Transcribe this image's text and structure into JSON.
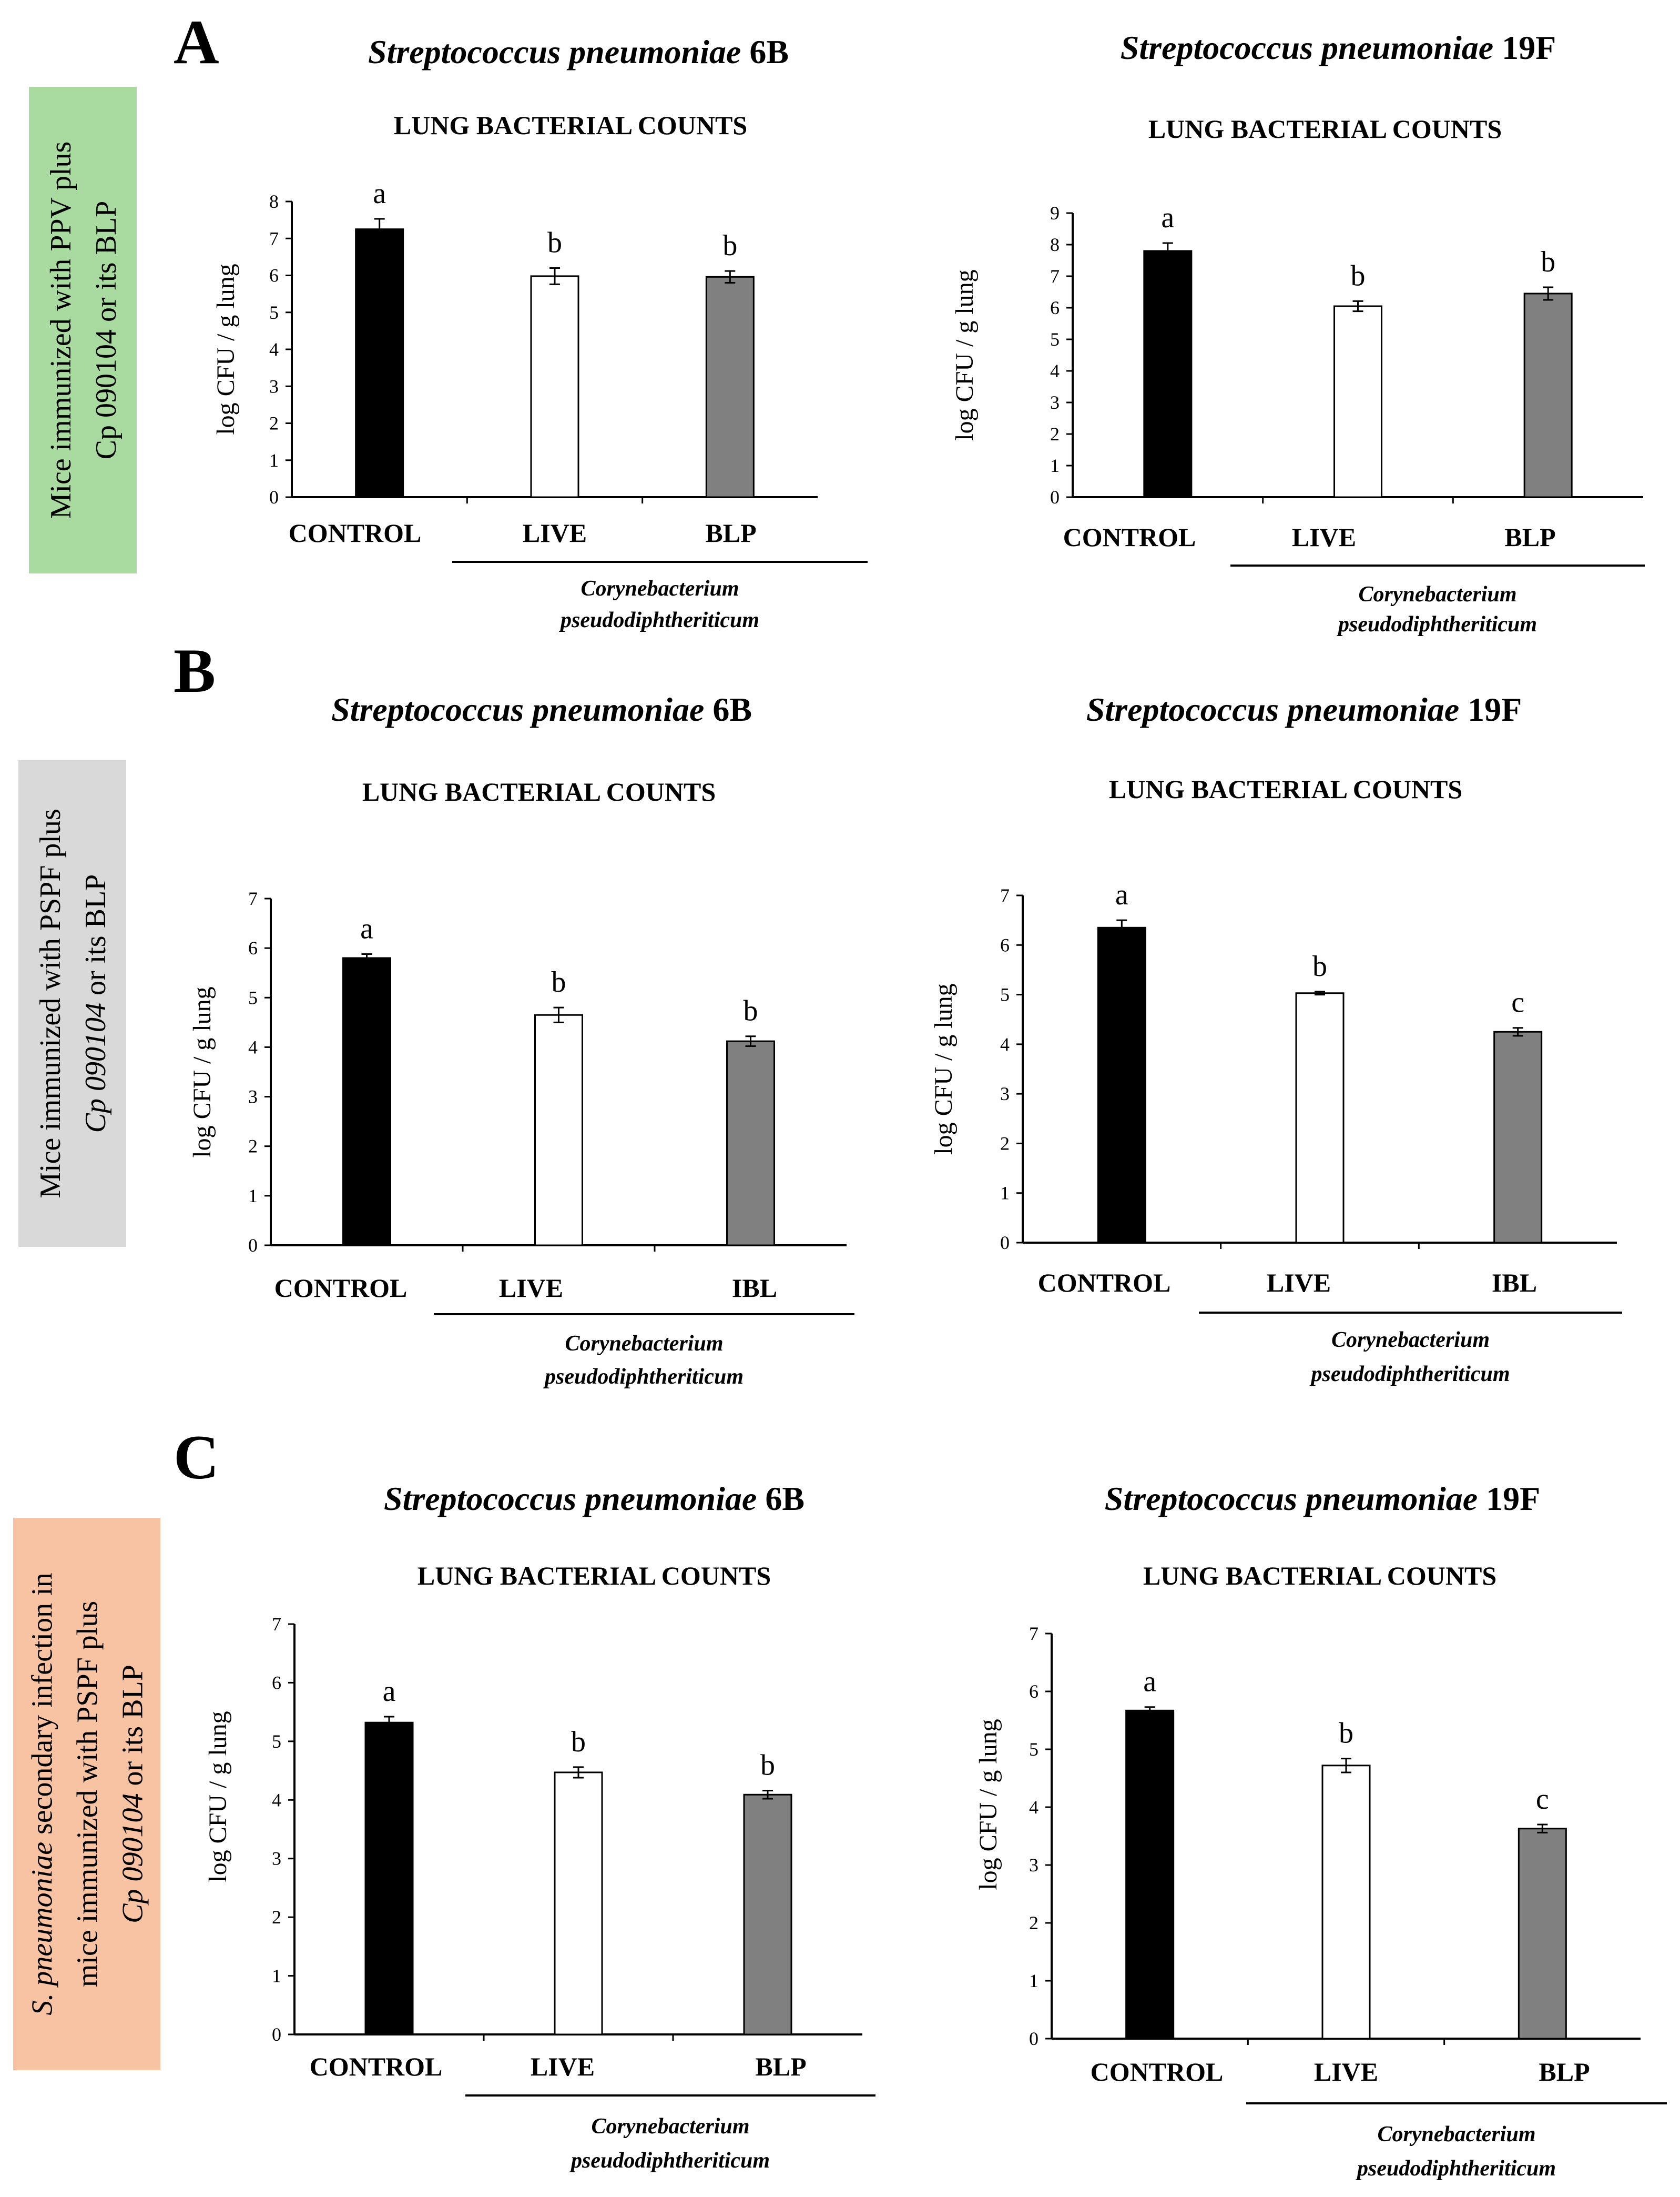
{
  "panels": [
    {
      "letter": "A",
      "side_label": [
        "Mice immunized with PPV plus",
        "Cp 090104 or its BLP"
      ],
      "side_italic": [],
      "side_color": "#a9dba0"
    },
    {
      "letter": "B",
      "side_label": [
        "Mice immunized with PSPF plus",
        "Cp 090104 or its BLP"
      ],
      "side_italic": [
        "Cp 090104"
      ],
      "side_color": "#d9d9d9"
    },
    {
      "letter": "C",
      "side_label": [
        "S. pneumoniae secondary infection in",
        "mice immunized with PSPF plus",
        "Cp 090104 or its BLP"
      ],
      "side_italic": [
        "S. pneumoniae",
        "Cp 090104"
      ],
      "side_color": "#f8c3a3"
    }
  ],
  "colors": {
    "control": "#000000",
    "live": "#ffffff",
    "treated": "#808080"
  },
  "chart_data": [
    {
      "type": "bar",
      "panel": "A",
      "title_species": "Streptococcus pneumoniae",
      "title_strain": "6B",
      "subtitle": "LUNG BACTERIAL COUNTS",
      "ylabel": "log CFU / g lung",
      "ylim": [
        0,
        8
      ],
      "yticks": [
        0,
        1,
        2,
        3,
        4,
        5,
        6,
        7,
        8
      ],
      "categories": [
        "CONTROL",
        "LIVE",
        "BLP"
      ],
      "values": [
        7.25,
        5.98,
        5.96
      ],
      "errors": [
        0.28,
        0.22,
        0.16
      ],
      "significance": [
        "a",
        "b",
        "b"
      ],
      "group_label": [
        "Corynebacterium",
        "pseudodiphtheriticum"
      ]
    },
    {
      "type": "bar",
      "panel": "A",
      "title_species": "Streptococcus pneumoniae",
      "title_strain": "19F",
      "subtitle": "LUNG BACTERIAL COUNTS",
      "ylabel": "log CFU / g lung",
      "ylim": [
        0,
        9
      ],
      "yticks": [
        0,
        1,
        2,
        3,
        4,
        5,
        6,
        7,
        8,
        9
      ],
      "categories": [
        "CONTROL",
        "LIVE",
        "BLP"
      ],
      "values": [
        7.8,
        6.05,
        6.45
      ],
      "errors": [
        0.25,
        0.16,
        0.2
      ],
      "significance": [
        "a",
        "b",
        "b"
      ],
      "group_label": [
        "Corynebacterium",
        "pseudodiphtheriticum"
      ]
    },
    {
      "type": "bar",
      "panel": "B",
      "title_species": "Streptococcus pneumoniae",
      "title_strain": "6B",
      "subtitle": "LUNG BACTERIAL COUNTS",
      "ylabel": "log CFU / g lung",
      "ylim": [
        0,
        7
      ],
      "yticks": [
        0,
        1,
        2,
        3,
        4,
        5,
        6,
        7
      ],
      "categories": [
        "CONTROL",
        "LIVE",
        "IBL"
      ],
      "values": [
        5.8,
        4.65,
        4.12
      ],
      "errors": [
        0.08,
        0.15,
        0.1
      ],
      "significance": [
        "a",
        "b",
        "b"
      ],
      "group_label": [
        "Corynebacterium",
        "pseudodiphtheriticum"
      ]
    },
    {
      "type": "bar",
      "panel": "B",
      "title_species": "Streptococcus pneumoniae",
      "title_strain": "19F",
      "subtitle": "LUNG BACTERIAL COUNTS",
      "ylabel": "log CFU / g lung",
      "ylim": [
        0,
        7
      ],
      "yticks": [
        0,
        1,
        2,
        3,
        4,
        5,
        6,
        7
      ],
      "categories": [
        "CONTROL",
        "LIVE",
        "IBL"
      ],
      "values": [
        6.35,
        5.03,
        4.25
      ],
      "errors": [
        0.15,
        0.03,
        0.08
      ],
      "significance": [
        "a",
        "b",
        "c"
      ],
      "group_label": [
        "Corynebacterium",
        "pseudodiphtheriticum"
      ]
    },
    {
      "type": "bar",
      "panel": "C",
      "title_species": "Streptococcus pneumoniae",
      "title_strain": "6B",
      "subtitle": "LUNG BACTERIAL COUNTS",
      "ylabel": "log CFU / g lung",
      "ylim": [
        0,
        7
      ],
      "yticks": [
        0,
        1,
        2,
        3,
        4,
        5,
        6,
        7
      ],
      "categories": [
        "CONTROL",
        "LIVE",
        "BLP"
      ],
      "values": [
        5.32,
        4.47,
        4.09
      ],
      "errors": [
        0.1,
        0.09,
        0.07
      ],
      "significance": [
        "a",
        "b",
        "b"
      ],
      "group_label": [
        "Corynebacterium",
        "pseudodiphtheriticum"
      ]
    },
    {
      "type": "bar",
      "panel": "C",
      "title_species": "Streptococcus pneumoniae",
      "title_strain": "19F",
      "subtitle": "LUNG BACTERIAL COUNTS",
      "ylabel": "log CFU / g lung",
      "ylim": [
        0,
        7
      ],
      "yticks": [
        0,
        1,
        2,
        3,
        4,
        5,
        6,
        7
      ],
      "categories": [
        "CONTROL",
        "LIVE",
        "BLP"
      ],
      "values": [
        5.67,
        4.72,
        3.63
      ],
      "errors": [
        0.06,
        0.12,
        0.07
      ],
      "significance": [
        "a",
        "b",
        "c"
      ],
      "group_label": [
        "Corynebacterium",
        "pseudodiphtheriticum"
      ]
    }
  ]
}
